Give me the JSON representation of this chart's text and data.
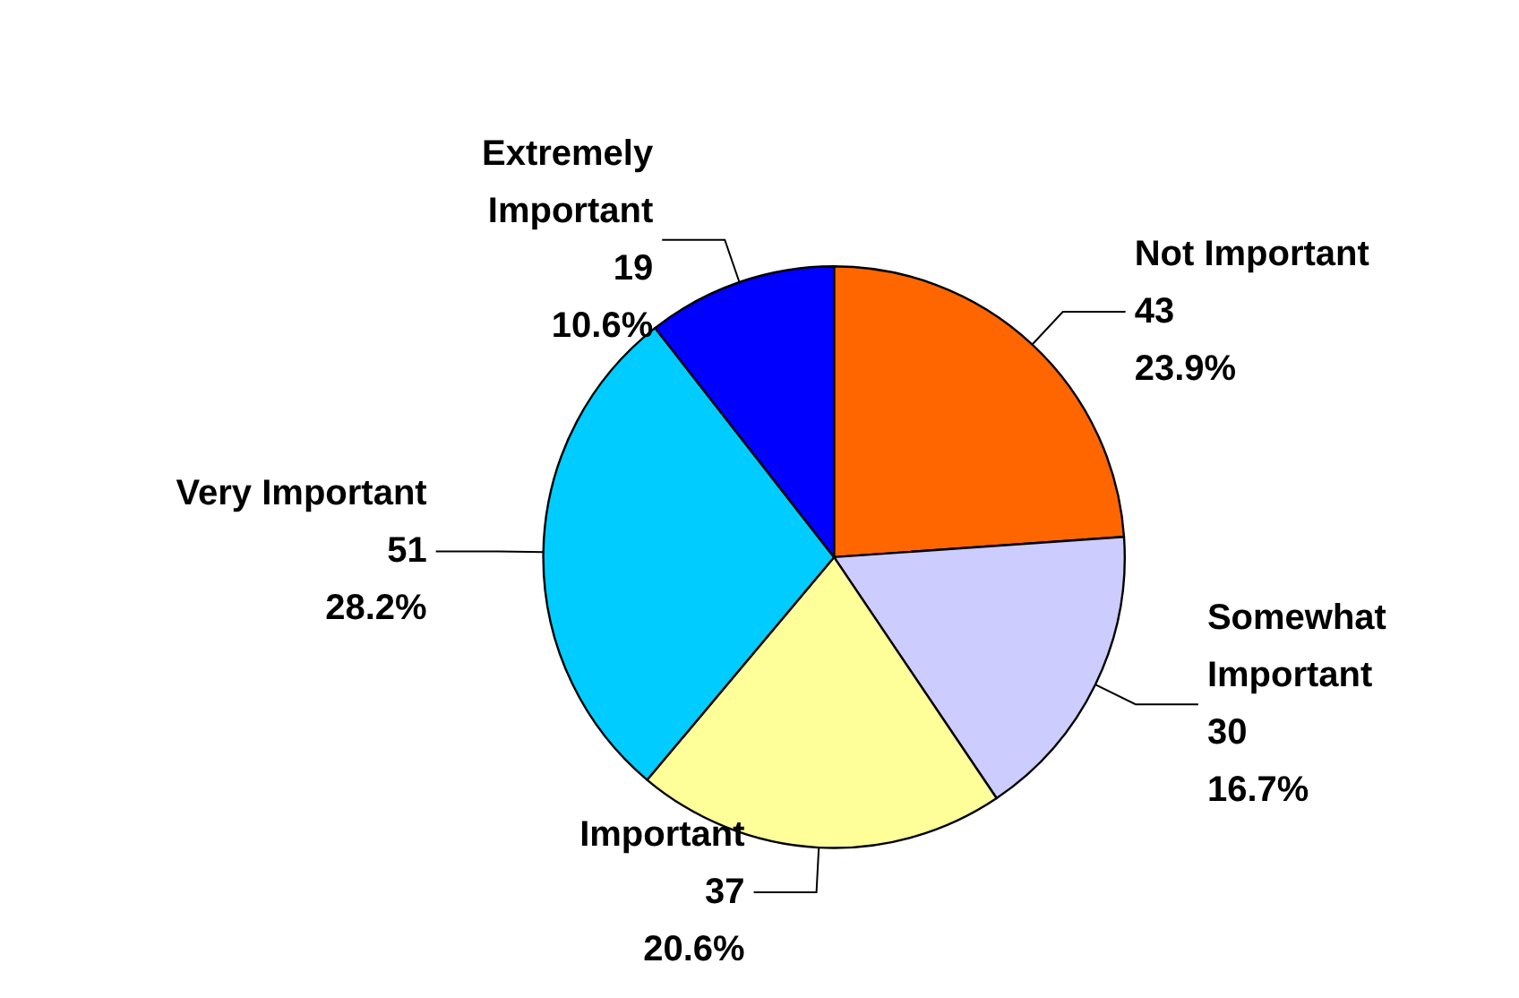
{
  "chart_data": {
    "type": "pie",
    "categories": [
      "Not Important",
      "Somewhat Important",
      "Important",
      "Very Important",
      "Extremely Important"
    ],
    "values": [
      43,
      30,
      37,
      51,
      19
    ],
    "colors": [
      "#ff6600",
      "#ccccff",
      "#ffff99",
      "#00ccff",
      "#0000ff"
    ],
    "value_labels": [
      "43\n23.9%",
      "30\n16.7%",
      "37\n20.6%",
      "51\n28.2%",
      "19\n10.6%"
    ],
    "legend": false
  }
}
